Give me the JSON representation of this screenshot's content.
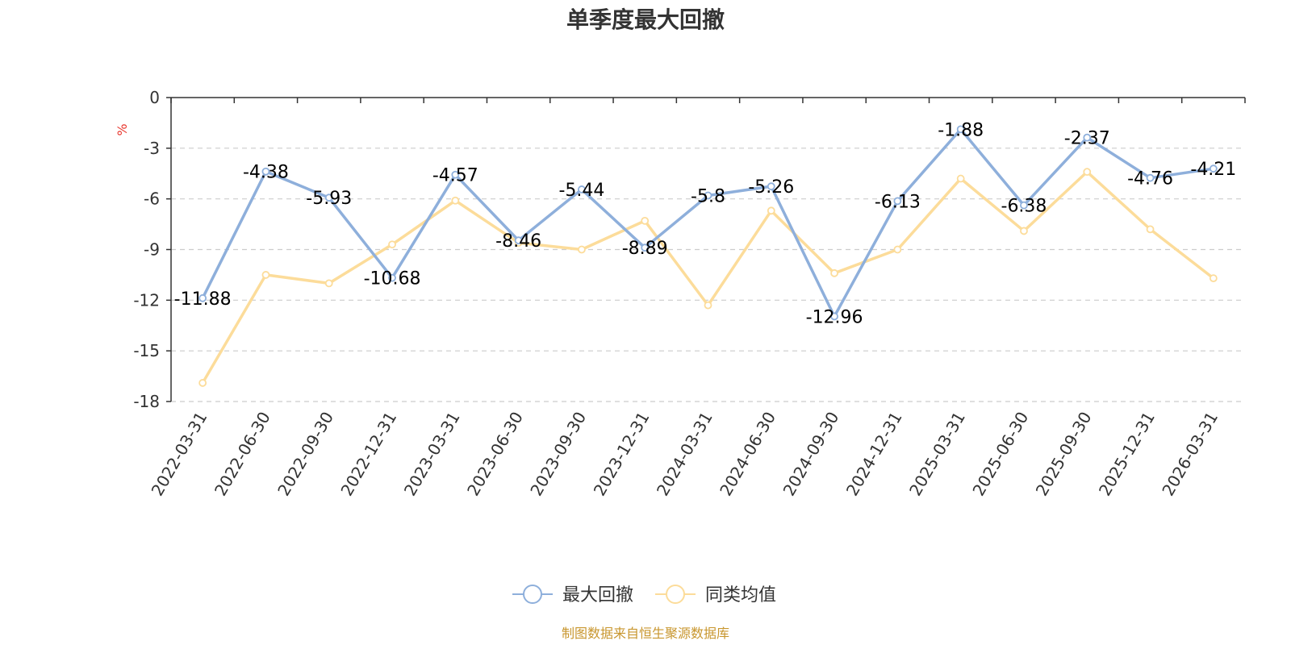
{
  "chart_data": {
    "type": "line",
    "title": "单季度最大回撤",
    "ylabel": "%",
    "ylim": [
      -18,
      0
    ],
    "yticks": [
      0,
      -3,
      -6,
      -9,
      -12,
      -15,
      -18
    ],
    "grid": true,
    "legend_position": "bottom",
    "categories": [
      "2022-03-31",
      "2022-06-30",
      "2022-09-30",
      "2022-12-31",
      "2023-03-31",
      "2023-06-30",
      "2023-09-30",
      "2023-12-31",
      "2024-03-31",
      "2024-06-30",
      "2024-09-30",
      "2024-12-31",
      "2025-03-31",
      "2025-06-30",
      "2025-09-30",
      "2025-12-31",
      "2026-03-31"
    ],
    "series": [
      {
        "name": "最大回撤",
        "color": "#8eafdb",
        "show_labels": true,
        "values": [
          -11.88,
          -4.38,
          -5.93,
          -10.68,
          -4.57,
          -8.46,
          -5.44,
          -8.89,
          -5.8,
          -5.26,
          -12.96,
          -6.13,
          -1.88,
          -6.38,
          -2.37,
          -4.76,
          -4.21
        ]
      },
      {
        "name": "同类均值",
        "color": "#fcdc9a",
        "show_labels": false,
        "values": [
          -16.9,
          -10.5,
          -11.0,
          -8.7,
          -6.1,
          -8.6,
          -9.0,
          -7.3,
          -12.3,
          -6.7,
          -10.4,
          -9.0,
          -4.8,
          -7.9,
          -4.4,
          -7.8,
          -10.7
        ]
      }
    ]
  },
  "source_note": "制图数据来自恒生聚源数据库",
  "colors": {
    "unit": "#e8382f",
    "source": "#c8962e",
    "grid": "#cccccc",
    "axis": "#333333"
  }
}
